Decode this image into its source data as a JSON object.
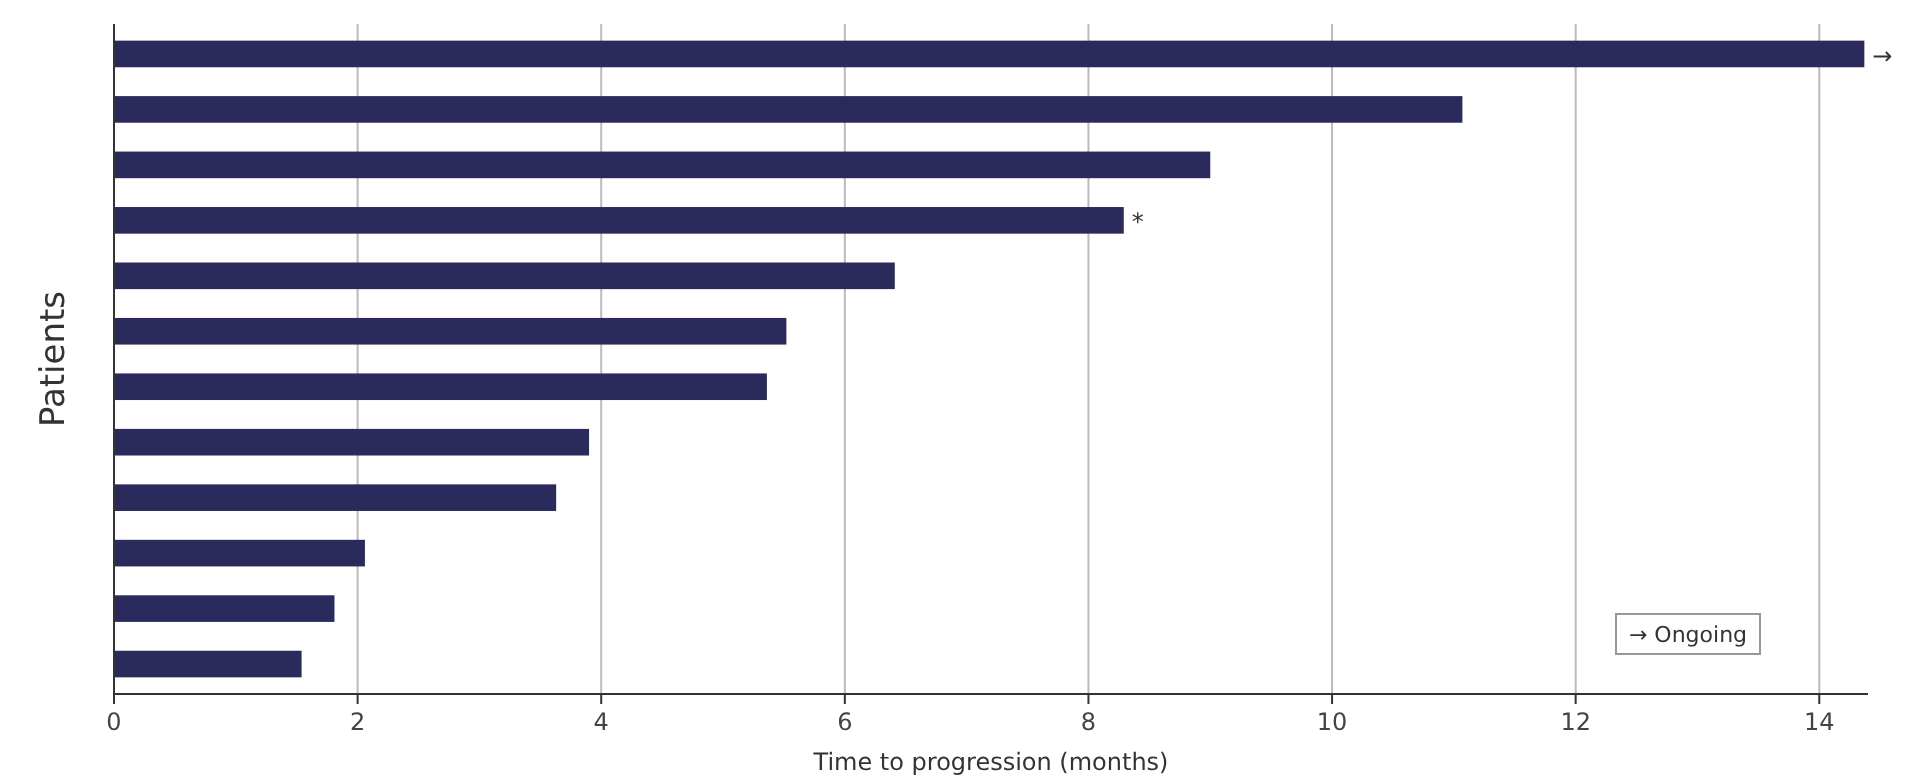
{
  "chart_data": {
    "type": "bar",
    "orientation": "horizontal",
    "xlabel": "Time to progression (months)",
    "ylabel": "Patients",
    "categories": [
      null,
      null,
      null,
      null,
      null,
      null,
      null,
      null,
      null,
      null,
      null,
      null
    ],
    "values": [
      14.37,
      11.07,
      9.0,
      8.29,
      6.41,
      5.52,
      5.36,
      3.9,
      3.63,
      2.06,
      1.81,
      1.54
    ],
    "color": "#2b2a5c",
    "xlim": [
      0,
      14.4
    ],
    "xticks": [
      0,
      2,
      4,
      6,
      8,
      10,
      12,
      14
    ],
    "grid": "x",
    "annotations": [
      {
        "text": "*",
        "x": 8.29
      },
      {
        "text": "→",
        "x": 14.37
      },
      "→ Ongoing"
    ]
  }
}
